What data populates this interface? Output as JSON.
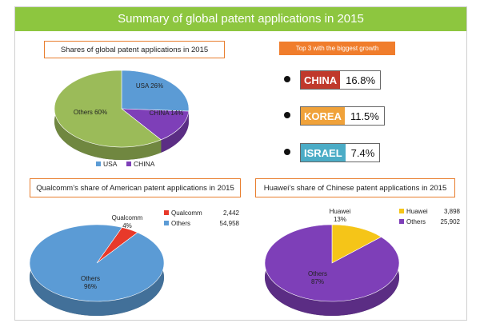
{
  "banner_title": "Summary of global patent applications in 2015",
  "colors": {
    "banner": "#8dc63f",
    "accent_orange": "#f07d2c",
    "usa": "#5b9bd5",
    "china": "#7e3fb8",
    "others_green": "#9bbb59",
    "qualcomm_red": "#e8392a",
    "huawei_yellow": "#f5c518",
    "korea_orange": "#f0a23a",
    "israel_blue": "#4bacc6",
    "china_red": "#c0392b"
  },
  "growth": {
    "title": "Top 3 with the biggest growth",
    "items": [
      {
        "country": "CHINA",
        "value": "16.8%",
        "color": "#c0392b"
      },
      {
        "country": "KOREA",
        "value": "11.5%",
        "color": "#f0a23a"
      },
      {
        "country": "ISRAEL",
        "value": "7.4%",
        "color": "#4bacc6"
      }
    ]
  },
  "chart_data": [
    {
      "type": "pie",
      "title": "Shares of global patent applications in 2015",
      "categories": [
        "USA",
        "CHINA",
        "Others"
      ],
      "values": [
        26,
        14,
        60
      ],
      "data_labels": [
        "USA 26%",
        "CHINA 14%",
        "Others 60%"
      ],
      "legend": [
        "USA",
        "CHINA"
      ],
      "legend_position": "bottom"
    },
    {
      "type": "pie",
      "title": "Qualcomm’s share of American patent applications in 2015",
      "categories": [
        "Qualcomm",
        "Others"
      ],
      "values": [
        2442,
        54958
      ],
      "percents": [
        4,
        96
      ],
      "data_labels": [
        [
          "Qualcomm",
          "4%"
        ],
        [
          "Others",
          "96%"
        ]
      ],
      "legend": [
        {
          "label": "Qualcomm",
          "value": "2,442"
        },
        {
          "label": "Others",
          "value": "54,958"
        }
      ],
      "legend_position": "right"
    },
    {
      "type": "pie",
      "title": "Huawei’s share of Chinese patent applications in 2015",
      "categories": [
        "Huawei",
        "Others"
      ],
      "values": [
        3898,
        25902
      ],
      "percents": [
        13,
        87
      ],
      "data_labels": [
        [
          "Huawei",
          "13%"
        ],
        [
          "Others",
          "87%"
        ]
      ],
      "legend": [
        {
          "label": "Huawei",
          "value": "3,898"
        },
        {
          "label": "Others",
          "value": "25,902"
        }
      ],
      "legend_position": "right"
    }
  ]
}
